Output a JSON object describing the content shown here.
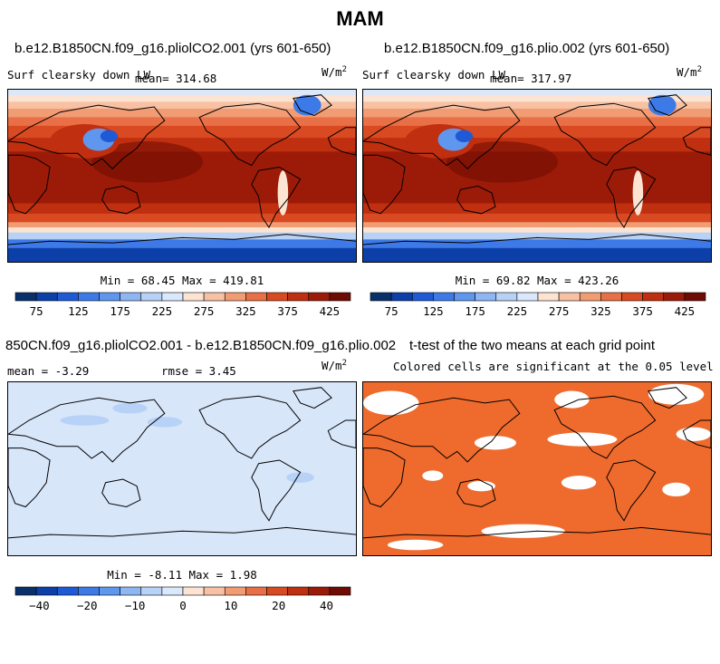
{
  "figure_title": "MAM",
  "panels": [
    {
      "title": "b.e12.B1850CN.f09_g16.pliolCO2.001 (yrs 601-650)",
      "variable": "Surf clearsky down LW",
      "mean_label": "mean= 314.68",
      "units": "W/m",
      "units_sup": "2",
      "minmax_label": "Min =  68.45 Max = 419.81"
    },
    {
      "title": "b.e12.B1850CN.f09_g16.plio.002 (yrs 601-650)",
      "variable": "Surf clearsky down LW",
      "mean_label": "mean= 317.97",
      "units": "W/m",
      "units_sup": "2",
      "minmax_label": "Min =  69.82 Max = 423.26"
    },
    {
      "title": "850CN.f09_g16.pliolCO2.001 - b.e12.B1850CN.f09_g16.plio.002",
      "mean_label": "mean =  -3.29",
      "rmse_label": "rmse =   3.45",
      "units": "W/m",
      "units_sup": "2",
      "minmax_label": "Min =  -8.11 Max =   1.98"
    },
    {
      "title": "t-test of the two means at each grid point",
      "subtitle": "Colored cells are significant at the 0.05 level"
    }
  ],
  "chart_data": [
    {
      "type": "heatmap",
      "title": "b.e12.B1850CN.f09_g16.pliolCO2.001 (yrs 601-650)",
      "field": "Surf clearsky down LW",
      "mean": 314.68,
      "min": 68.45,
      "max": 419.81,
      "colorbar_ticks": [
        75,
        125,
        175,
        225,
        275,
        325,
        375,
        425
      ]
    },
    {
      "type": "heatmap",
      "title": "b.e12.B1850CN.f09_g16.plio.002 (yrs 601-650)",
      "field": "Surf clearsky down LW",
      "mean": 317.97,
      "min": 69.82,
      "max": 423.26,
      "colorbar_ticks": [
        75,
        125,
        175,
        225,
        275,
        325,
        375,
        425
      ]
    },
    {
      "type": "heatmap",
      "title": "850CN.f09_g16.pliolCO2.001 - b.e12.B1850CN.f09_g16.plio.002",
      "mean": -3.29,
      "rmse": 3.45,
      "min": -8.11,
      "max": 1.98,
      "colorbar_ticks": [
        -40,
        -20,
        -10,
        0,
        10,
        20,
        40
      ]
    },
    {
      "type": "heatmap",
      "title": "t-test of the two means at each grid point",
      "note": "Colored cells are significant at the 0.05 level"
    }
  ],
  "colors": {
    "scale": [
      "#08306b",
      "#0d3fa8",
      "#1f5ad6",
      "#3d7ae8",
      "#5f97ef",
      "#8db6f3",
      "#b7d2f6",
      "#d9e8fb",
      "#fde3d2",
      "#f8c1a3",
      "#f29c74",
      "#e86f46",
      "#d94a22",
      "#bf2f10",
      "#9c1b08",
      "#6e0b02"
    ],
    "diff_background": "#d8e6fa",
    "ttest_fill": "#ef6a2d",
    "land_outline": "#000000"
  }
}
